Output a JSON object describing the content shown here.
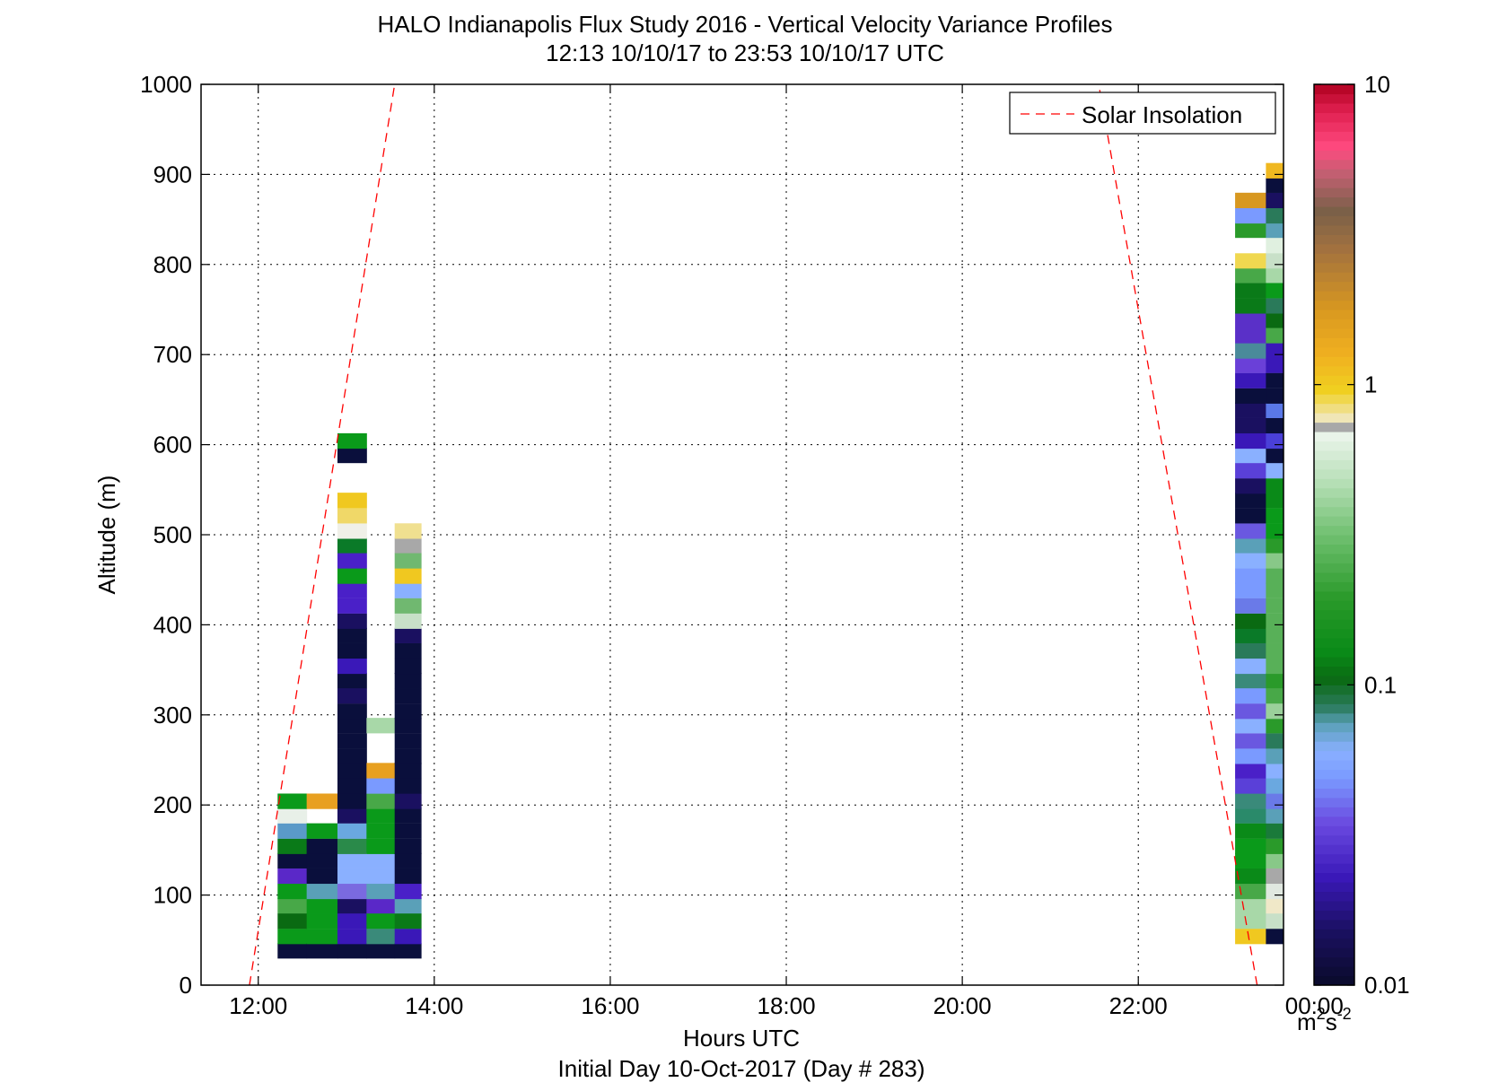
{
  "chart_data": {
    "type": "heatmap",
    "title": "HALO Indianapolis Flux Study 2016 - Vertical Velocity Variance Profiles",
    "subtitle": "12:13 10/10/17 to 23:53 10/10/17  UTC",
    "xlabel": "Hours UTC",
    "xlabel2": "Initial Day 10-Oct-2017 (Day # 283)",
    "ylabel": "Altitude (m)",
    "xlim": [
      11.35,
      23.65
    ],
    "ylim": [
      0,
      1000
    ],
    "xticks": [
      12,
      14,
      16,
      18,
      20,
      22,
      24
    ],
    "xtick_labels": [
      "12:00",
      "14:00",
      "16:00",
      "18:00",
      "20:00",
      "22:00",
      "00:00"
    ],
    "yticks": [
      0,
      100,
      200,
      300,
      400,
      500,
      600,
      700,
      800,
      900,
      1000
    ],
    "ytick_labels": [
      "0",
      "100",
      "200",
      "300",
      "400",
      "500",
      "600",
      "700",
      "800",
      "900",
      "1000"
    ],
    "grid": true,
    "legend": {
      "entries": [
        "Solar Insolation"
      ],
      "position": "top-right"
    },
    "colorbar": {
      "scale": "log",
      "range": [
        0.01,
        10
      ],
      "tick_values": [
        0.01,
        0.1,
        1,
        10
      ],
      "tick_labels": [
        "0.01",
        "0.1",
        "1",
        "10"
      ],
      "unit_base": "m",
      "unit_sup1": "2",
      "unit_mid": "s",
      "unit_sup2": "-2"
    },
    "solar_insolation_lines": [
      {
        "x": [
          11.9,
          13.55
        ],
        "y": [
          0,
          1000
        ]
      },
      {
        "x": [
          23.35,
          21.55
        ],
        "y": [
          0,
          1000
        ]
      }
    ],
    "cell_height_m": 16.67,
    "columns": [
      {
        "x_start": 12.22,
        "x_end": 12.55,
        "cells": [
          [
            30,
            "#0a0f3c"
          ],
          [
            46,
            "#0a9a1a"
          ],
          [
            63,
            "#0a6a12"
          ],
          [
            80,
            "#48a848"
          ],
          [
            96,
            "#0a9a1a"
          ],
          [
            113,
            "#5a28c8"
          ],
          [
            130,
            "#0a0f3c"
          ],
          [
            146,
            "#0a7a18"
          ],
          [
            163,
            "#5a9ac8"
          ],
          [
            180,
            "#e8f0e8"
          ],
          [
            196,
            "#0a9a1a"
          ]
        ]
      },
      {
        "x_start": 12.55,
        "x_end": 12.9,
        "cells": [
          [
            30,
            "#0a0f3c"
          ],
          [
            46,
            "#0a9a1a"
          ],
          [
            63,
            "#0a9a1a"
          ],
          [
            80,
            "#0a9a1a"
          ],
          [
            96,
            "#5aa0b8"
          ],
          [
            113,
            "#0a0f3c"
          ],
          [
            130,
            "#0a0f3c"
          ],
          [
            146,
            "#0a0f3c"
          ],
          [
            163,
            "#0a9a1a"
          ],
          [
            196,
            "#e8a020"
          ]
        ]
      },
      {
        "x_start": 12.9,
        "x_end": 13.23,
        "cells": [
          [
            30,
            "#0a0f3c"
          ],
          [
            46,
            "#3a18b8"
          ],
          [
            63,
            "#3a18b8"
          ],
          [
            80,
            "#1a1060"
          ],
          [
            96,
            "#7a6ae0"
          ],
          [
            113,
            "#8ab0ff"
          ],
          [
            130,
            "#8ab0ff"
          ],
          [
            146,
            "#2a8a4a"
          ],
          [
            163,
            "#6aa8e0"
          ],
          [
            180,
            "#1a1060"
          ],
          [
            196,
            "#0a0f3c"
          ],
          [
            213,
            "#0a0f3c"
          ],
          [
            230,
            "#0a0f3c"
          ],
          [
            246,
            "#0a0f3c"
          ],
          [
            263,
            "#0a0f3c"
          ],
          [
            280,
            "#0a0f3c"
          ],
          [
            296,
            "#0a0f3c"
          ],
          [
            313,
            "#1a1060"
          ],
          [
            330,
            "#0a0f3c"
          ],
          [
            346,
            "#3a18b8"
          ],
          [
            363,
            "#0a0f3c"
          ],
          [
            380,
            "#0a0f3c"
          ],
          [
            396,
            "#1a1060"
          ],
          [
            413,
            "#4a20c8"
          ],
          [
            430,
            "#4a20c8"
          ],
          [
            446,
            "#0a9a1a"
          ],
          [
            463,
            "#4a20c8"
          ],
          [
            480,
            "#0a7a28"
          ],
          [
            496,
            "#f0f0e8"
          ],
          [
            513,
            "#f0d868"
          ],
          [
            530,
            "#f0c820"
          ],
          [
            580,
            "#0a0f3c"
          ],
          [
            596,
            "#0a9a1a"
          ]
        ]
      },
      {
        "x_start": 13.23,
        "x_end": 13.55,
        "cells": [
          [
            30,
            "#0a0f3c"
          ],
          [
            46,
            "#3a8a7a"
          ],
          [
            63,
            "#0a9a1a"
          ],
          [
            80,
            "#5a28c8"
          ],
          [
            96,
            "#5aa0b8"
          ],
          [
            113,
            "#8ab0ff"
          ],
          [
            130,
            "#8ab0ff"
          ],
          [
            146,
            "#0a9a1a"
          ],
          [
            163,
            "#0a9a1a"
          ],
          [
            180,
            "#0a9a1a"
          ],
          [
            196,
            "#48a848"
          ],
          [
            213,
            "#7a9aff"
          ],
          [
            230,
            "#e8a020"
          ],
          [
            280,
            "#a8d8a8"
          ]
        ]
      },
      {
        "x_start": 13.55,
        "x_end": 13.85,
        "cells": [
          [
            30,
            "#0a0f3c"
          ],
          [
            46,
            "#3a18b8"
          ],
          [
            63,
            "#0a7a18"
          ],
          [
            80,
            "#5aa0b8"
          ],
          [
            96,
            "#4a20c8"
          ],
          [
            113,
            "#0a0f3c"
          ],
          [
            130,
            "#0a0f3c"
          ],
          [
            146,
            "#0a0f3c"
          ],
          [
            163,
            "#0a0f3c"
          ],
          [
            180,
            "#0a0f3c"
          ],
          [
            196,
            "#1a1060"
          ],
          [
            213,
            "#0a0f3c"
          ],
          [
            230,
            "#0a0f3c"
          ],
          [
            246,
            "#0a0f3c"
          ],
          [
            263,
            "#0a0f3c"
          ],
          [
            280,
            "#0a0f3c"
          ],
          [
            296,
            "#0a0f3c"
          ],
          [
            313,
            "#0a0f3c"
          ],
          [
            330,
            "#0a0f3c"
          ],
          [
            346,
            "#0a0f3c"
          ],
          [
            363,
            "#0a0f3c"
          ],
          [
            380,
            "#1a1060"
          ],
          [
            396,
            "#c8e0c8"
          ],
          [
            413,
            "#70b870"
          ],
          [
            430,
            "#8ab0ff"
          ],
          [
            446,
            "#f0c820"
          ],
          [
            463,
            "#70b870"
          ],
          [
            480,
            "#a8a8a8"
          ],
          [
            496,
            "#f0e090"
          ]
        ]
      },
      {
        "x_start": 23.1,
        "x_end": 23.45,
        "cells": [
          [
            46,
            "#f0c820"
          ],
          [
            63,
            "#a8d8a8"
          ],
          [
            80,
            "#a8d8a8"
          ],
          [
            96,
            "#48a848"
          ],
          [
            113,
            "#0a8a18"
          ],
          [
            130,
            "#0a9a1a"
          ],
          [
            146,
            "#0a9a1a"
          ],
          [
            163,
            "#0a8a18"
          ],
          [
            180,
            "#2a8a6a"
          ],
          [
            196,
            "#3a8a7a"
          ],
          [
            213,
            "#5a40d8"
          ],
          [
            230,
            "#4a20c8"
          ],
          [
            246,
            "#7a9aff"
          ],
          [
            263,
            "#6a58e0"
          ],
          [
            280,
            "#8ab0ff"
          ],
          [
            296,
            "#6a58e0"
          ],
          [
            313,
            "#7a9aff"
          ],
          [
            330,
            "#3a8a7a"
          ],
          [
            346,
            "#8ab0ff"
          ],
          [
            363,
            "#2a7a5a"
          ],
          [
            380,
            "#0a7a28"
          ],
          [
            396,
            "#0a6a12"
          ],
          [
            413,
            "#6a7ae8"
          ],
          [
            430,
            "#7a9aff"
          ],
          [
            446,
            "#7a9aff"
          ],
          [
            463,
            "#8ab0ff"
          ],
          [
            480,
            "#5aa0b8"
          ],
          [
            496,
            "#6a58e0"
          ],
          [
            513,
            "#0a0f3c"
          ],
          [
            530,
            "#0a0f3c"
          ],
          [
            546,
            "#1a1060"
          ],
          [
            563,
            "#5a40d8"
          ],
          [
            580,
            "#8ab0ff"
          ],
          [
            596,
            "#3a18b8"
          ],
          [
            613,
            "#1a1060"
          ],
          [
            630,
            "#1a1060"
          ],
          [
            646,
            "#0a0f3c"
          ],
          [
            663,
            "#3a18b8"
          ],
          [
            680,
            "#6a40d8"
          ],
          [
            696,
            "#4a8a9a"
          ],
          [
            713,
            "#5a30c8"
          ],
          [
            730,
            "#5a30c8"
          ],
          [
            746,
            "#0a7a18"
          ],
          [
            763,
            "#0a7a18"
          ],
          [
            780,
            "#48a848"
          ],
          [
            796,
            "#f0d850"
          ],
          [
            813,
            "#ffffff"
          ],
          [
            830,
            "#2a9a2a"
          ],
          [
            846,
            "#7a9aff"
          ],
          [
            863,
            "#d89820"
          ]
        ]
      },
      {
        "x_start": 23.45,
        "x_end": 23.8,
        "cells": [
          [
            46,
            "#0a0f3c"
          ],
          [
            63,
            "#c8e0c8"
          ],
          [
            80,
            "#f0e8c8"
          ],
          [
            96,
            "#e0e8e0"
          ],
          [
            113,
            "#a8a8a8"
          ],
          [
            130,
            "#88c888"
          ],
          [
            146,
            "#2a9a2a"
          ],
          [
            163,
            "#1a7a3a"
          ],
          [
            180,
            "#5aa0b8"
          ],
          [
            196,
            "#6a7ae8"
          ],
          [
            213,
            "#6aa8e0"
          ],
          [
            230,
            "#8ab0ff"
          ],
          [
            246,
            "#5aa0b8"
          ],
          [
            263,
            "#2a7a5a"
          ],
          [
            280,
            "#2a9a2a"
          ],
          [
            296,
            "#9ad09a"
          ],
          [
            313,
            "#48a848"
          ],
          [
            330,
            "#2a9a2a"
          ],
          [
            346,
            "#58b058"
          ],
          [
            363,
            "#58b058"
          ],
          [
            380,
            "#58b058"
          ],
          [
            396,
            "#58b058"
          ],
          [
            413,
            "#58b058"
          ],
          [
            430,
            "#58b058"
          ],
          [
            446,
            "#58b058"
          ],
          [
            463,
            "#88c888"
          ],
          [
            480,
            "#2a9a2a"
          ],
          [
            496,
            "#0a9a1a"
          ],
          [
            513,
            "#0a9a1a"
          ],
          [
            530,
            "#0a8a18"
          ],
          [
            546,
            "#0a8a18"
          ],
          [
            563,
            "#8ab0ff"
          ],
          [
            580,
            "#0a0f3c"
          ],
          [
            596,
            "#4a40d8"
          ],
          [
            613,
            "#0a0f3c"
          ],
          [
            630,
            "#5a78e8"
          ],
          [
            646,
            "#0a0f3c"
          ],
          [
            663,
            "#0a0f3c"
          ],
          [
            680,
            "#3a18b8"
          ],
          [
            696,
            "#3a18b8"
          ],
          [
            713,
            "#48a848"
          ],
          [
            730,
            "#0a6a12"
          ],
          [
            746,
            "#2a7a5a"
          ],
          [
            763,
            "#0a9a1a"
          ],
          [
            780,
            "#a8d8a8"
          ],
          [
            796,
            "#c8e0c8"
          ],
          [
            813,
            "#e0f0e0"
          ],
          [
            830,
            "#5aa0b8"
          ],
          [
            846,
            "#2a7a5a"
          ],
          [
            863,
            "#1a1060"
          ],
          [
            880,
            "#0a0f3c"
          ],
          [
            896,
            "#f0b820"
          ]
        ]
      }
    ]
  }
}
